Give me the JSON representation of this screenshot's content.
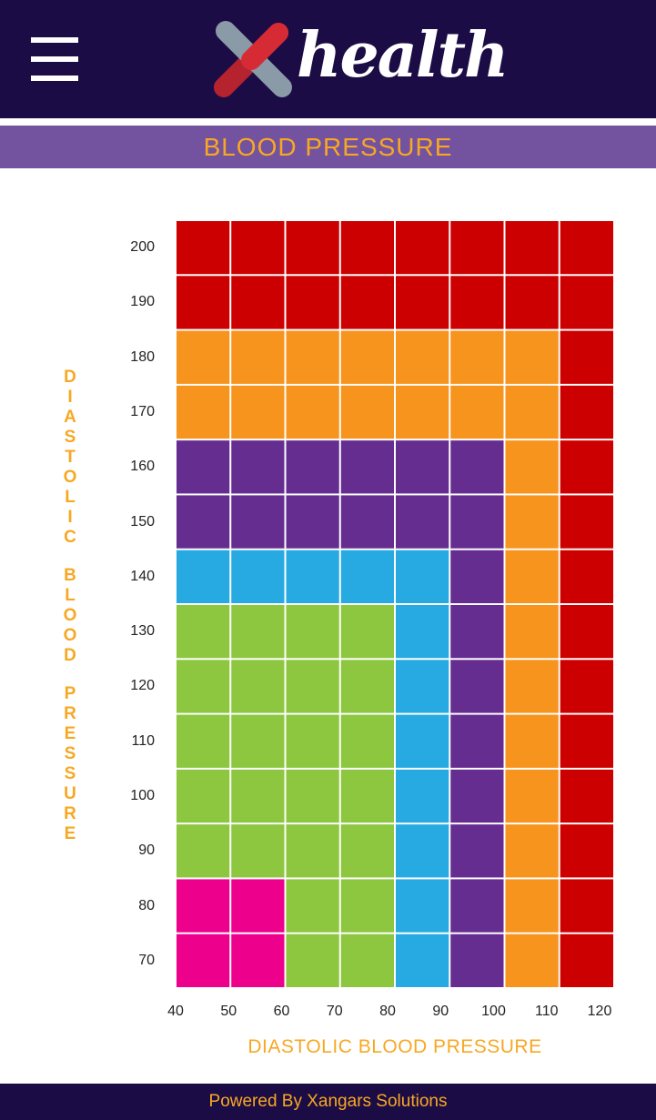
{
  "app": {
    "brand_word": "health",
    "logo_icon": "x-cross-logo-icon",
    "menu_icon": "hamburger-menu-icon"
  },
  "page": {
    "title": "BLOOD PRESSURE",
    "footer": "Powered By Xangars Solutions"
  },
  "colors": {
    "header_bg": "#1c0c45",
    "title_bg": "#73529f",
    "accent": "#f7a823",
    "red": "#cc0000",
    "orange": "#f7941d",
    "purple": "#662d91",
    "blue": "#27aae1",
    "green": "#8dc63f",
    "pink": "#ec008c"
  },
  "chart_data": {
    "type": "heatmap",
    "ylabel": "DIASTOLIC BLOOD PRESSURE",
    "xlabel": "DIASTOLIC BLOOD PRESSURE",
    "x_ticks": [
      "40",
      "50",
      "60",
      "70",
      "80",
      "90",
      "100",
      "110",
      "120"
    ],
    "y_ticks": [
      "200",
      "190",
      "180",
      "170",
      "160",
      "150",
      "140",
      "130",
      "120",
      "110",
      "100",
      "90",
      "80",
      "70"
    ],
    "x_range": [
      40,
      120
    ],
    "columns": 8,
    "rows": 14,
    "cells": [
      [
        "red",
        "red",
        "red",
        "red",
        "red",
        "red",
        "red",
        "red"
      ],
      [
        "red",
        "red",
        "red",
        "red",
        "red",
        "red",
        "red",
        "red"
      ],
      [
        "orange",
        "orange",
        "orange",
        "orange",
        "orange",
        "orange",
        "orange",
        "red"
      ],
      [
        "orange",
        "orange",
        "orange",
        "orange",
        "orange",
        "orange",
        "orange",
        "red"
      ],
      [
        "purple",
        "purple",
        "purple",
        "purple",
        "purple",
        "purple",
        "orange",
        "red"
      ],
      [
        "purple",
        "purple",
        "purple",
        "purple",
        "purple",
        "purple",
        "orange",
        "red"
      ],
      [
        "blue",
        "blue",
        "blue",
        "blue",
        "blue",
        "purple",
        "orange",
        "red"
      ],
      [
        "green",
        "green",
        "green",
        "green",
        "blue",
        "purple",
        "orange",
        "red"
      ],
      [
        "green",
        "green",
        "green",
        "green",
        "blue",
        "purple",
        "orange",
        "red"
      ],
      [
        "green",
        "green",
        "green",
        "green",
        "blue",
        "purple",
        "orange",
        "red"
      ],
      [
        "green",
        "green",
        "green",
        "green",
        "blue",
        "purple",
        "orange",
        "red"
      ],
      [
        "green",
        "green",
        "green",
        "green",
        "blue",
        "purple",
        "orange",
        "red"
      ],
      [
        "pink",
        "pink",
        "green",
        "green",
        "blue",
        "purple",
        "orange",
        "red"
      ],
      [
        "pink",
        "pink",
        "green",
        "green",
        "blue",
        "purple",
        "orange",
        "red"
      ]
    ]
  }
}
